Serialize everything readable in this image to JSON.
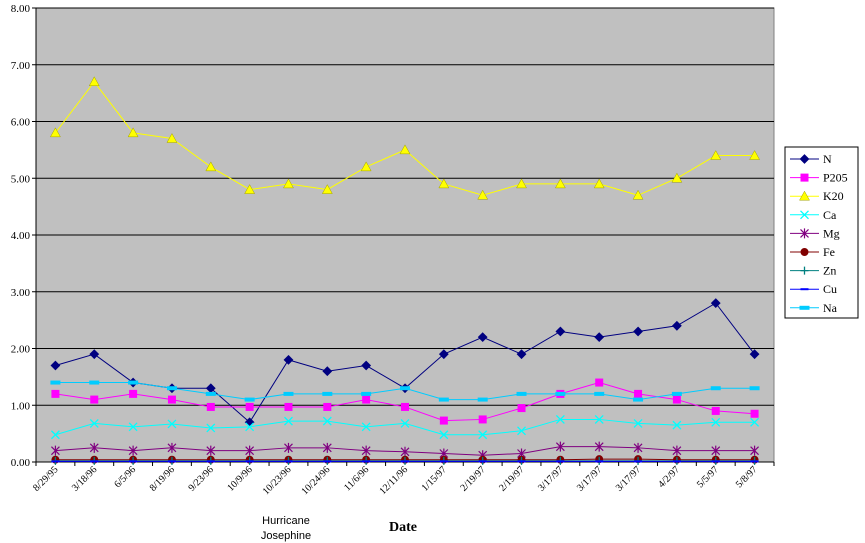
{
  "chart_data": {
    "type": "line",
    "xlabel": "Date",
    "ylabel": "",
    "ylim": [
      0,
      8
    ],
    "yticks": [
      "0.00",
      "1.00",
      "2.00",
      "3.00",
      "4.00",
      "5.00",
      "6.00",
      "7.00",
      "8.00"
    ],
    "grid": true,
    "legend_position": "right",
    "plot_background": "#c0c0c0",
    "categories": [
      "8/29/95",
      "3/18/96",
      "6/5/96",
      "8/19/96",
      "9/23/96",
      "10/9/96",
      "10/23/96",
      "10/24/96",
      "11/6/96",
      "12/11/96",
      "1/15/97",
      "2/19/97",
      "2/19/97",
      "3/17/97",
      "3/17/97",
      "3/17/97",
      "4/2/97",
      "5/5/97",
      "5/8/97"
    ],
    "annotation": [
      "Hurricane",
      "Josephine"
    ],
    "series": [
      {
        "name": "N",
        "color": "#000080",
        "marker": "diamond",
        "values": [
          1.7,
          1.9,
          1.4,
          1.3,
          1.3,
          0.7,
          1.8,
          1.6,
          1.7,
          1.3,
          1.9,
          2.2,
          1.9,
          2.3,
          2.2,
          2.3,
          2.4,
          2.8,
          1.9
        ]
      },
      {
        "name": "P205",
        "color": "#ff00ff",
        "marker": "square",
        "values": [
          1.2,
          1.1,
          1.2,
          1.1,
          0.97,
          0.97,
          0.97,
          0.97,
          1.1,
          0.97,
          0.73,
          0.75,
          0.95,
          1.2,
          1.4,
          1.2,
          1.1,
          0.9,
          0.85
        ]
      },
      {
        "name": "K20",
        "color": "#ffff00",
        "marker": "triangle",
        "values": [
          5.8,
          6.7,
          5.8,
          5.7,
          5.2,
          4.8,
          4.9,
          4.8,
          5.2,
          5.5,
          4.9,
          4.7,
          4.9,
          4.9,
          4.9,
          4.7,
          5.0,
          5.4,
          5.4
        ]
      },
      {
        "name": "Ca",
        "color": "#00ffff",
        "marker": "x",
        "values": [
          0.48,
          0.68,
          0.62,
          0.67,
          0.6,
          0.62,
          0.72,
          0.72,
          0.62,
          0.68,
          0.48,
          0.48,
          0.55,
          0.75,
          0.75,
          0.68,
          0.65,
          0.7,
          0.7
        ]
      },
      {
        "name": "Mg",
        "color": "#800080",
        "marker": "star",
        "values": [
          0.2,
          0.25,
          0.2,
          0.25,
          0.2,
          0.2,
          0.25,
          0.25,
          0.2,
          0.18,
          0.15,
          0.12,
          0.15,
          0.27,
          0.27,
          0.25,
          0.2,
          0.2,
          0.2
        ]
      },
      {
        "name": "Fe",
        "color": "#800000",
        "marker": "circle",
        "values": [
          0.04,
          0.04,
          0.04,
          0.04,
          0.04,
          0.04,
          0.04,
          0.04,
          0.04,
          0.04,
          0.04,
          0.04,
          0.04,
          0.04,
          0.05,
          0.05,
          0.04,
          0.04,
          0.04
        ]
      },
      {
        "name": "Zn",
        "color": "#008080",
        "marker": "plus",
        "values": [
          0.02,
          0.02,
          0.02,
          0.02,
          0.02,
          0.02,
          0.02,
          0.02,
          0.02,
          0.02,
          0.02,
          0.02,
          0.02,
          0.02,
          0.02,
          0.02,
          0.02,
          0.02,
          0.02
        ]
      },
      {
        "name": "Cu",
        "color": "#0000ff",
        "marker": "dash",
        "values": [
          0.01,
          0.01,
          0.01,
          0.01,
          0.01,
          0.01,
          0.01,
          0.01,
          0.01,
          0.01,
          0.01,
          0.01,
          0.01,
          0.01,
          0.01,
          0.01,
          0.01,
          0.01,
          0.01
        ]
      },
      {
        "name": "Na",
        "color": "#00ccff",
        "marker": "bar",
        "values": [
          1.4,
          1.4,
          1.4,
          1.3,
          1.2,
          1.1,
          1.2,
          1.2,
          1.2,
          1.3,
          1.1,
          1.1,
          1.2,
          1.2,
          1.2,
          1.1,
          1.2,
          1.3,
          1.3
        ]
      }
    ]
  }
}
